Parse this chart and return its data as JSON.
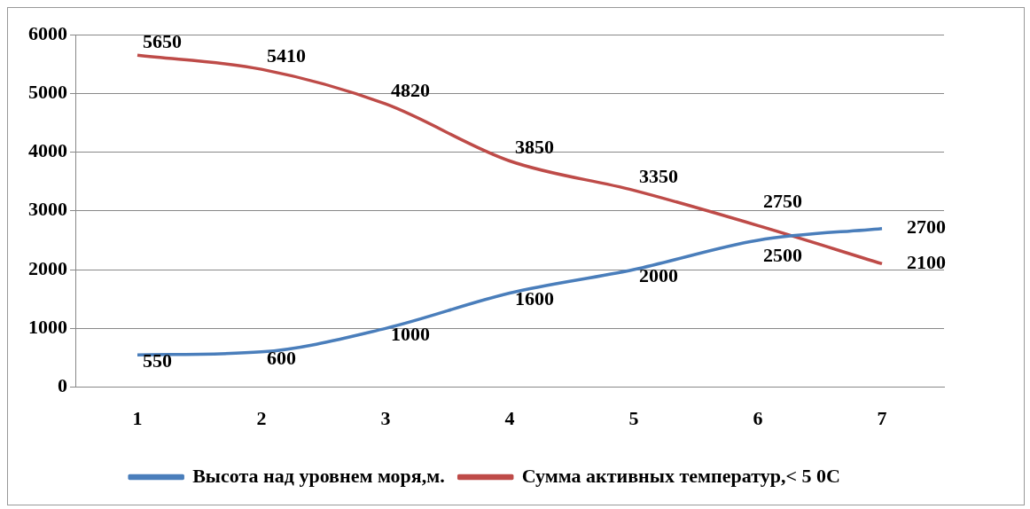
{
  "chart_data": {
    "type": "line",
    "categories": [
      "1",
      "2",
      "3",
      "4",
      "5",
      "6",
      "7"
    ],
    "series": [
      {
        "name": "Высота над уровнем моря,м.",
        "color": "#4a7ebb",
        "values": [
          550,
          600,
          1000,
          1600,
          2000,
          2500,
          2700
        ]
      },
      {
        "name": "Сумма активных температур,< 5 0С",
        "color": "#be4b48",
        "values": [
          5650,
          5410,
          4820,
          3850,
          3350,
          2750,
          2100
        ]
      }
    ],
    "ylim": [
      0,
      6000
    ],
    "yticks": [
      0,
      1000,
      2000,
      3000,
      4000,
      5000,
      6000
    ],
    "grid": "y",
    "legend": "bottom",
    "marker": "none",
    "data_labels": true
  }
}
